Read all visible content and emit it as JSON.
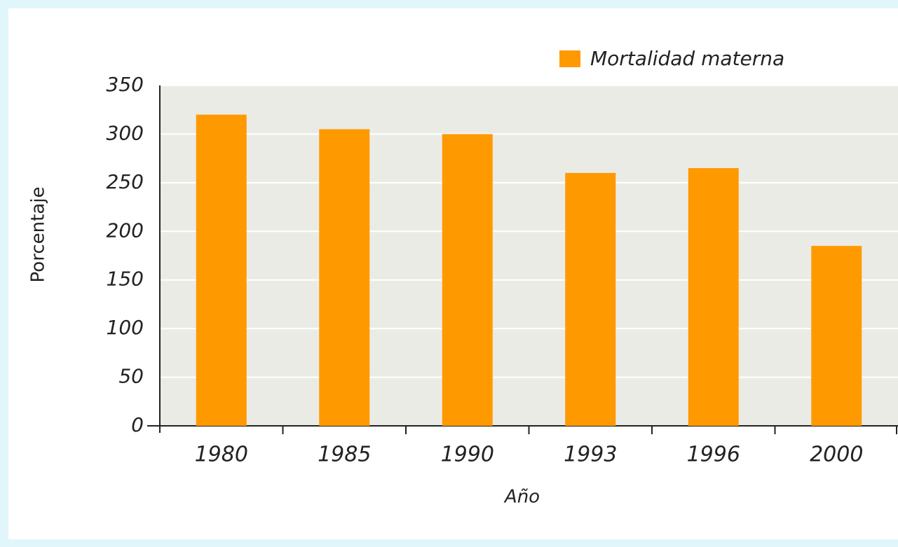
{
  "chart_data": {
    "type": "bar",
    "x_label": "Año",
    "y_label": "Porcentaje",
    "categories": [
      "1980",
      "1985",
      "1990",
      "1993",
      "1996",
      "2000"
    ],
    "series": [
      {
        "name": "Mortalidad materna",
        "color": "#ff9900",
        "values": [
          320,
          305,
          300,
          260,
          265,
          185
        ]
      }
    ],
    "ylim": [
      0,
      350
    ],
    "yticks": [
      0,
      50,
      100,
      150,
      200,
      250,
      300,
      350
    ],
    "grid": true,
    "legend": "top-right"
  }
}
